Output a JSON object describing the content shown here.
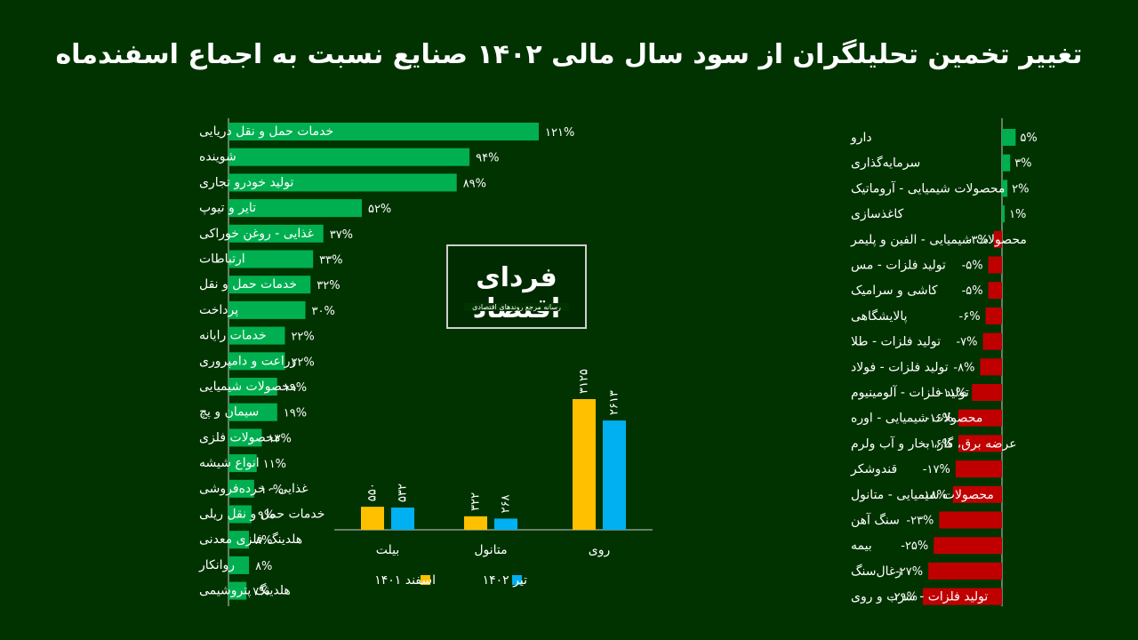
{
  "title": "تغییر تخمین تحلیلگران از سود سال مالی ۱۴۰۲ صنایع نسبت به اجماع اسفندماه",
  "logo": {
    "text": "فردای اقتصاد",
    "subtext": "رسانه مرجع روندهای اقتصادی"
  },
  "colors": {
    "background": "#003300",
    "positive": "#00b050",
    "negative": "#c00000",
    "esfand": "#ffc000",
    "tir": "#00b0f0"
  },
  "chart_data": [
    {
      "type": "bar",
      "orientation": "horizontal",
      "categories": [
        "خدمات حمل و نقل دریایی",
        "شوینده",
        "تولید خودرو تجاری",
        "تایر و تیوپ",
        "غذایی - روغن خوراکی",
        "ارتباطات",
        "خدمات حمل و نقل",
        "پرداخت",
        "خدمات رایانه",
        "زراعت و دامپروری",
        "محصولات شیمیایی",
        "سیمان و پچ",
        "محصولات فلزی",
        "انواع شیشه",
        "غذایی - خرده‌فروشی",
        "خدمات حمل و نقل ریلی",
        "هلدینگ فلزی معدنی",
        "روانکار",
        "هلدینگ پتروشیمی"
      ],
      "values": [
        121,
        94,
        89,
        52,
        37,
        33,
        32,
        30,
        22,
        22,
        19,
        19,
        13,
        11,
        10,
        9,
        8,
        8,
        7
      ],
      "value_labels": [
        "۱۲۱%",
        "۹۴%",
        "۸۹%",
        "۵۲%",
        "۳۷%",
        "۳۳%",
        "۳۲%",
        "۳۰%",
        "۲۲%",
        "۲۲%",
        "۱۹%",
        "۱۹%",
        "۱۳%",
        "۱۱%",
        "۱۰%",
        "۹%",
        "۸%",
        "۸%",
        "۷%"
      ],
      "unit": "%"
    },
    {
      "type": "bar",
      "orientation": "horizontal",
      "categories": [
        "دارو",
        "سرمایه‌گذاری",
        "محصولات شیمیایی - آروماتیک",
        "کاغذسازی",
        "محصولات شیمیایی - الفین و پلیمر",
        "تولید فلزات - مس",
        "کاشی و سرامیک",
        "پالایشگاهی",
        "تولید فلزات - طلا",
        "تولید فلزات - فولاد",
        "تولید فلزات - آلومینیوم",
        "محصولات شیمیایی - اوره",
        "عرضه برق، گاز، بخار و آب ولرم",
        "قندوشکر",
        "محصولات شیمیایی - متانول",
        "سنگ آهن",
        "بیمه",
        "زغال‌سنگ",
        "تولید فلزات - سرب و روی"
      ],
      "values": [
        5,
        3,
        2,
        1,
        -3,
        -5,
        -5,
        -6,
        -7,
        -8,
        -11,
        -16,
        -16,
        -17,
        -18,
        -23,
        -25,
        -27,
        -29
      ],
      "value_labels": [
        "۵%",
        "۳%",
        "۲%",
        "۱%",
        "-۳%",
        "-۵%",
        "-۵%",
        "-۶%",
        "-۷%",
        "-۸%",
        "-۱۱%",
        "-۱۶%",
        "-۱۶%",
        "-۱۷%",
        "-۱۸%",
        "-۲۳%",
        "-۲۵%",
        "-۲۷%",
        "-۲۹%"
      ],
      "unit": "%"
    },
    {
      "type": "bar",
      "orientation": "vertical",
      "categories": [
        "روی",
        "متانول",
        "بیلت"
      ],
      "series": [
        {
          "name": "اسفند ۱۴۰۱",
          "values": [
            3125,
            322,
            550
          ],
          "value_labels": [
            "۳۱۲۵",
            "۳۲۲",
            "۵۵۰"
          ]
        },
        {
          "name": "تیر ۱۴۰۲",
          "values": [
            2613,
            268,
            532
          ],
          "value_labels": [
            "۲۶۱۳",
            "۲۶۸",
            "۵۳۲"
          ]
        }
      ]
    }
  ]
}
